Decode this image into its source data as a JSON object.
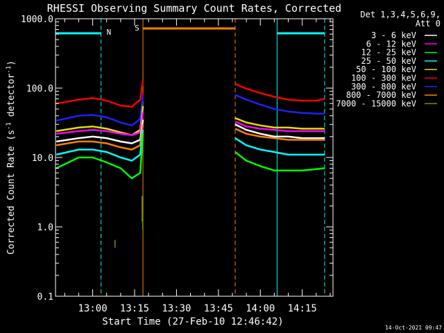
{
  "chart_data": {
    "type": "line",
    "title": "RHESSI Observing Summary Count Rates, Corrected",
    "xlabel": "Start Time (27-Feb-10 12:46:42)",
    "ylabel": "Corrected Count Rate (s",
    "ylabel_sup": "-1",
    "ylabel_mid": " detector",
    "ylabel_sup2": "-1",
    "ylabel_end": ")",
    "yscale": "log",
    "ylim": [
      0.1,
      1000
    ],
    "y_ticks": [
      {
        "value": 0.1,
        "label": "0.1"
      },
      {
        "value": 1,
        "label": "1.0"
      },
      {
        "value": 10,
        "label": "10.0"
      },
      {
        "value": 100,
        "label": "100.0"
      },
      {
        "value": 1000,
        "label": "1000.0"
      }
    ],
    "xlim": [
      "12:46:42",
      "14:26"
    ],
    "x_ticks": [
      "13:00",
      "13:15",
      "13:30",
      "13:45",
      "14:00",
      "14:15"
    ],
    "timestamp": "14-Oct-2021 09:47",
    "legend": {
      "header": [
        "Det 1,3,4,5,6,9,",
        "Att 0"
      ],
      "placement": "right",
      "entries": [
        {
          "label": "3 - 6 keV",
          "color": "#ffffff"
        },
        {
          "label": "6 - 12 keV",
          "color": "#ff00ff"
        },
        {
          "label": "12 - 25 keV",
          "color": "#00ff00"
        },
        {
          "label": "25 - 50 keV",
          "color": "#00ffff"
        },
        {
          "label": "50 - 100 keV",
          "color": "#e0e000"
        },
        {
          "label": "100 - 300 keV",
          "color": "#ff0000"
        },
        {
          "label": "300 - 800 keV",
          "color": "#2020ff"
        },
        {
          "label": "800 - 7000 keV",
          "color": "#ff8000"
        },
        {
          "label": "7000 - 15000 keV",
          "color": "#6a9a00"
        }
      ]
    },
    "flags": [
      {
        "label": "N",
        "color": "#00ffff",
        "type": "night",
        "intervals": [
          [
            "12:46:42",
            "13:03"
          ],
          [
            "14:06",
            "14:23"
          ]
        ]
      },
      {
        "label": "S",
        "color": "#ff8000",
        "type": "saa",
        "intervals": [
          [
            "13:18",
            "13:51"
          ]
        ]
      }
    ],
    "series": [
      {
        "color": "#ff0000",
        "segments": [
          {
            "x": [
              "12:47",
              "12:55",
              "13:00",
              "13:05",
              "13:10",
              "13:14",
              "13:17",
              "13:18"
            ],
            "y": [
              60,
              68,
              72,
              66,
              56,
              54,
              68,
              130
            ]
          },
          {
            "x": [
              "13:51",
              "13:55",
              "14:00",
              "14:05",
              "14:10",
              "14:15",
              "14:20",
              "14:23"
            ],
            "y": [
              115,
              98,
              85,
              75,
              68,
              66,
              66,
              70
            ]
          }
        ]
      },
      {
        "color": "#2020ff",
        "segments": [
          {
            "x": [
              "12:47",
              "12:55",
              "13:00",
              "13:05",
              "13:10",
              "13:14",
              "13:17",
              "13:18"
            ],
            "y": [
              34,
              40,
              41,
              38,
              32,
              29,
              36,
              80
            ]
          },
          {
            "x": [
              "13:51",
              "13:55",
              "14:00",
              "14:05",
              "14:10",
              "14:15",
              "14:20",
              "14:23"
            ],
            "y": [
              80,
              68,
              58,
              50,
              46,
              44,
              43,
              43
            ]
          }
        ]
      },
      {
        "color": "#e0e000",
        "segments": [
          {
            "x": [
              "12:47",
              "12:55",
              "13:00",
              "13:05",
              "13:10",
              "13:14",
              "13:17",
              "13:18"
            ],
            "y": [
              24,
              27,
              28,
              26,
              23,
              21,
              25,
              55
            ]
          },
          {
            "x": [
              "13:51",
              "13:55",
              "14:00",
              "14:05",
              "14:10",
              "14:15",
              "14:20",
              "14:23"
            ],
            "y": [
              37,
              32,
              29,
              27,
              27,
              26,
              26,
              26
            ]
          }
        ]
      },
      {
        "color": "#ff00ff",
        "segments": [
          {
            "x": [
              "12:47",
              "12:55",
              "13:00",
              "13:05",
              "13:10",
              "13:14",
              "13:17",
              "13:18"
            ],
            "y": [
              22,
              24,
              25,
              24,
              22,
              21,
              23,
              45
            ]
          },
          {
            "x": [
              "13:51",
              "13:55",
              "14:00",
              "14:05",
              "14:10",
              "14:15",
              "14:20",
              "14:23"
            ],
            "y": [
              33,
              28,
              26,
              25,
              24,
              24,
              24,
              24
            ]
          }
        ]
      },
      {
        "color": "#ffffff",
        "segments": [
          {
            "x": [
              "12:47",
              "12:55",
              "13:00",
              "13:05",
              "13:10",
              "13:14",
              "13:17",
              "13:18"
            ],
            "y": [
              17,
              19,
              20,
              19,
              17,
              16,
              18,
              35
            ]
          },
          {
            "x": [
              "13:51",
              "13:55",
              "14:00",
              "14:05",
              "14:10",
              "14:15",
              "14:20",
              "14:23"
            ],
            "y": [
              30,
              25,
              22,
              20,
              20,
              19,
              19,
              19
            ]
          }
        ]
      },
      {
        "color": "#ff8000",
        "segments": [
          {
            "x": [
              "12:47",
              "12:55",
              "13:00",
              "13:05",
              "13:10",
              "13:14",
              "13:17",
              "13:18"
            ],
            "y": [
              15,
              17,
              17,
              16,
              14,
              13,
              15,
              30
            ]
          },
          {
            "x": [
              "13:51",
              "13:55",
              "14:00",
              "14:05",
              "14:10",
              "14:15",
              "14:20",
              "14:23"
            ],
            "y": [
              26,
              22,
              20,
              19,
              18,
              18,
              18,
              18
            ]
          }
        ]
      },
      {
        "color": "#00ffff",
        "segments": [
          {
            "x": [
              "12:47",
              "12:55",
              "13:00",
              "13:05",
              "13:10",
              "13:14",
              "13:17",
              "13:18"
            ],
            "y": [
              11,
              13,
              13,
              12,
              10,
              9,
              11,
              25
            ]
          },
          {
            "x": [
              "13:51",
              "13:55",
              "14:00",
              "14:05",
              "14:10",
              "14:15",
              "14:20",
              "14:23"
            ],
            "y": [
              19,
              15,
              13,
              12,
              11,
              11,
              11,
              11
            ]
          }
        ]
      },
      {
        "color": "#00ff00",
        "segments": [
          {
            "x": [
              "12:47",
              "12:55",
              "13:00",
              "13:05",
              "13:10",
              "13:14",
              "13:17",
              "13:18"
            ],
            "y": [
              7,
              10,
              10,
              8.5,
              7,
              5,
              6,
              22
            ]
          },
          {
            "x": [
              "13:51",
              "13:55",
              "14:00",
              "14:05",
              "14:10",
              "14:15",
              "14:20",
              "14:23"
            ],
            "y": [
              12,
              9,
              7.5,
              6.5,
              6.5,
              6.5,
              6.8,
              7
            ]
          }
        ]
      },
      {
        "color": "#6a9a00",
        "segments": [
          {
            "x": [
              "13:08",
              "13:08"
            ],
            "y": [
              0.5,
              0.65
            ]
          },
          {
            "x": [
              "13:17.7",
              "13:17.7"
            ],
            "y": [
              1.2,
              2.8
            ]
          },
          {
            "x": [
              "13:17.9",
              "13:17.9"
            ],
            "y": [
              0.9,
              1.5
            ]
          }
        ]
      }
    ]
  }
}
